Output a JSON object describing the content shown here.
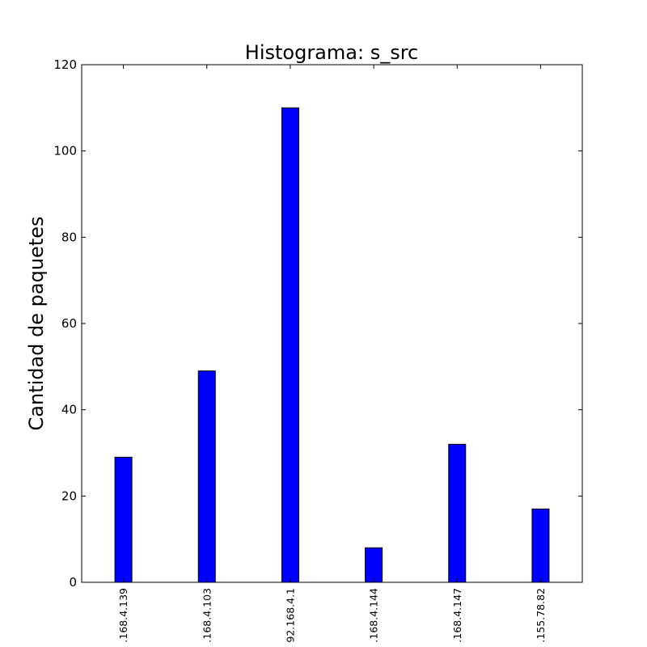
{
  "chart_data": {
    "type": "bar",
    "title": "Histograma: s_src",
    "xlabel": "",
    "ylabel": "Cantidad de paquetes",
    "categories": [
      ".168.4.139",
      ".168.4.103",
      "92.168.4.1",
      ".168.4.144",
      ".168.4.147",
      ".155.78.82"
    ],
    "values": [
      29,
      49,
      110,
      8,
      32,
      17
    ],
    "ylim": [
      0,
      120
    ],
    "yticks": [
      0,
      20,
      40,
      60,
      80,
      100,
      120
    ],
    "grid": false,
    "legend": "none",
    "bar_color": "#0000ff",
    "edge_color": "#000000"
  }
}
